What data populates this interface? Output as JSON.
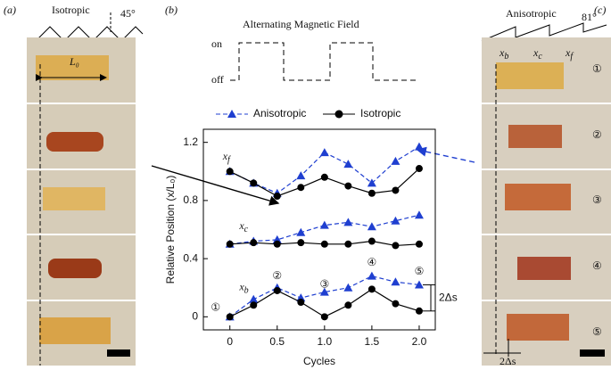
{
  "panel_a": {
    "label": "(a)",
    "title": "Isotropic",
    "angle": "45°",
    "length": "L₀"
  },
  "panel_b": {
    "label": "(b)",
    "field_title": "Alternating  Magnetic  Field",
    "on": "on",
    "off": "off"
  },
  "panel_c": {
    "label": "(c)",
    "title": "Anisotropic",
    "angle": "81°",
    "markers": [
      {
        "text": "x",
        "sub": "b"
      },
      {
        "text": "x",
        "sub": "c"
      },
      {
        "text": "x",
        "sub": "f"
      }
    ],
    "steps": [
      "①",
      "②",
      "③",
      "④",
      "⑤"
    ],
    "shift": "2Δs"
  },
  "chart_data": {
    "type": "line",
    "x": [
      0,
      0.25,
      0.5,
      0.75,
      1,
      1.25,
      1.5,
      1.75,
      2
    ],
    "xlabel": "Cycles",
    "ylabel": "Relative  Position  (x/L₀)",
    "xlim": [
      -0.28,
      2.17
    ],
    "ylim": [
      -0.09,
      1.29
    ],
    "xticks": [
      0,
      0.5,
      {
        "value": 1,
        "label": "1.0"
      },
      1.5,
      {
        "value": 2,
        "label": "2.0"
      }
    ],
    "yticks": [
      0,
      0.4,
      0.8,
      1.2
    ],
    "curve_labels": [
      {
        "text": "x",
        "sub": "f"
      },
      {
        "text": "x",
        "sub": "c"
      },
      {
        "text": "x",
        "sub": "b"
      }
    ],
    "series": [
      {
        "name": "Anisotropic",
        "color": "#1f3fd0",
        "marker": "triangle",
        "dashed": true,
        "values": [
          [
            1.0,
            0.92,
            0.85,
            0.97,
            1.13,
            1.05,
            0.92,
            1.07,
            1.17
          ],
          [
            0.5,
            0.52,
            0.53,
            0.58,
            0.63,
            0.65,
            0.62,
            0.66,
            0.7
          ],
          [
            0,
            0.12,
            0.2,
            0.13,
            0.17,
            0.2,
            0.28,
            0.24,
            0.22
          ]
        ]
      },
      {
        "name": "Isotropic",
        "color": "#000000",
        "marker": "circle",
        "dashed": false,
        "values": [
          [
            1.0,
            0.92,
            0.83,
            0.89,
            0.96,
            0.9,
            0.85,
            0.87,
            1.02
          ],
          [
            0.5,
            0.51,
            0.5,
            0.51,
            0.5,
            0.5,
            0.52,
            0.49,
            0.5
          ],
          [
            0,
            0.08,
            0.18,
            0.1,
            0,
            0.08,
            0.19,
            0.09,
            0.04
          ]
        ]
      }
    ],
    "annotations": [
      "①",
      "②",
      "③",
      "④",
      "⑤"
    ],
    "shift_label": "2Δs"
  }
}
